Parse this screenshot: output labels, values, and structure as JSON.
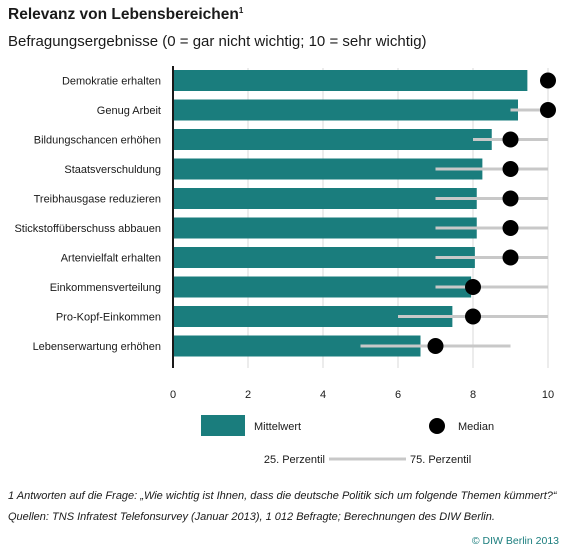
{
  "header": {
    "title": "Relevanz von Lebensbereichen",
    "title_footnote_mark": "1",
    "subtitle": "Befragungsergebnisse (0 = gar nicht wichtig; 10 = sehr wichtig)"
  },
  "chart_data": {
    "type": "bar",
    "orientation": "horizontal",
    "categories": [
      "Demokratie erhalten",
      "Genug Arbeit",
      "Bildungschancen erhöhen",
      "Staatsverschuldung",
      "Treibhausgase reduzieren",
      "Stickstoffüberschuss abbauen",
      "Artenvielfalt erhalten",
      "Einkommensverteilung",
      "Pro-Kopf-Einkommen",
      "Lebenserwartung erhöhen"
    ],
    "series": [
      {
        "name": "Mittelwert",
        "values": [
          9.45,
          9.2,
          8.5,
          8.25,
          8.1,
          8.1,
          8.05,
          7.95,
          7.45,
          6.6
        ]
      },
      {
        "name": "Median",
        "values": [
          10,
          10,
          9,
          9,
          9,
          9,
          9,
          8,
          8,
          7
        ]
      }
    ],
    "percentile_25": [
      10,
      9,
      8,
      7,
      7,
      7,
      7,
      7,
      6,
      5
    ],
    "percentile_75": [
      10,
      10,
      10,
      10,
      10,
      10,
      10,
      10,
      10,
      9
    ],
    "xlim": [
      0,
      10
    ],
    "xticks": [
      "0",
      "2",
      "4",
      "6",
      "8",
      "10"
    ],
    "grid": true,
    "legend": {
      "mean_label": "Mittelwert",
      "median_label": "Median",
      "p25_label": "25. Perzentil",
      "p75_label": "75. Perzentil"
    },
    "colors": {
      "bar": "#1a7d7d",
      "median": "#000000",
      "range": "#c8c8c8",
      "grid": "#d9d9d9"
    }
  },
  "footer": {
    "footnote1": "1 Antworten auf die Frage: „Wie wichtig ist Ihnen, dass die deutsche Politik sich um folgende Themen kümmert?“",
    "footnote2": "Quellen: TNS Infratest Telefonsurvey (Januar 2013), 1 012 Befragte; Berechnungen des DIW Berlin.",
    "copyright": "© DIW Berlin 2013"
  }
}
